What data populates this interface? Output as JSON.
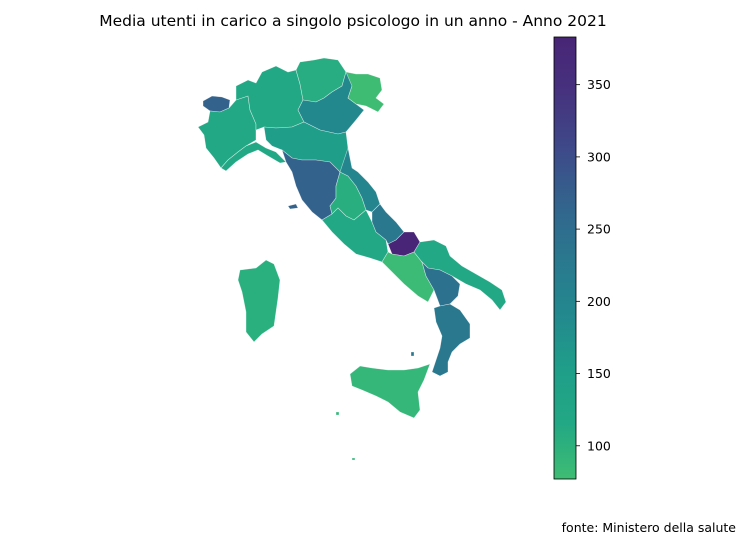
{
  "title": "Media utenti in carico a singolo psicologo in un anno - Anno 2021",
  "source": "fonte: Ministero della salute",
  "colorbar": {
    "ticks": [
      "100",
      "150",
      "200",
      "250",
      "300",
      "350"
    ],
    "min": 77,
    "max": 383,
    "colormap": "viridis",
    "stops": [
      "#3fbc73",
      "#22a884",
      "#1f9e89",
      "#23888e",
      "#2a788e",
      "#33638d",
      "#3e4989",
      "#46327e",
      "#482576"
    ]
  },
  "map_data": {
    "type": "choropleth",
    "regions": [
      {
        "name": "Valle d'Aosta",
        "value": 290,
        "color": "#33638d"
      },
      {
        "name": "Piemonte",
        "value": 155,
        "color": "#22a884"
      },
      {
        "name": "Lombardia",
        "value": 155,
        "color": "#22a884"
      },
      {
        "name": "Trentino-Alto Adige",
        "value": 130,
        "color": "#27ad81"
      },
      {
        "name": "Veneto",
        "value": 215,
        "color": "#23888e"
      },
      {
        "name": "Friuli-Venezia Giulia",
        "value": 95,
        "color": "#3fbc73"
      },
      {
        "name": "Liguria",
        "value": 150,
        "color": "#22a884"
      },
      {
        "name": "Emilia-Romagna",
        "value": 175,
        "color": "#1f9e89"
      },
      {
        "name": "Toscana",
        "value": 300,
        "color": "#33638d"
      },
      {
        "name": "Umbria",
        "value": 120,
        "color": "#29af7f"
      },
      {
        "name": "Marche",
        "value": 210,
        "color": "#25858e"
      },
      {
        "name": "Lazio",
        "value": 155,
        "color": "#22a884"
      },
      {
        "name": "Abruzzo",
        "value": 260,
        "color": "#2a788e"
      },
      {
        "name": "Molise",
        "value": 383,
        "color": "#482576"
      },
      {
        "name": "Campania",
        "value": 100,
        "color": "#3bbb75"
      },
      {
        "name": "Puglia",
        "value": 155,
        "color": "#22a884"
      },
      {
        "name": "Basilicata",
        "value": 235,
        "color": "#2c728e"
      },
      {
        "name": "Calabria",
        "value": 220,
        "color": "#2a788e"
      },
      {
        "name": "Sicilia",
        "value": 100,
        "color": "#35b779"
      },
      {
        "name": "Sardegna",
        "value": 120,
        "color": "#2ab07f"
      }
    ]
  }
}
